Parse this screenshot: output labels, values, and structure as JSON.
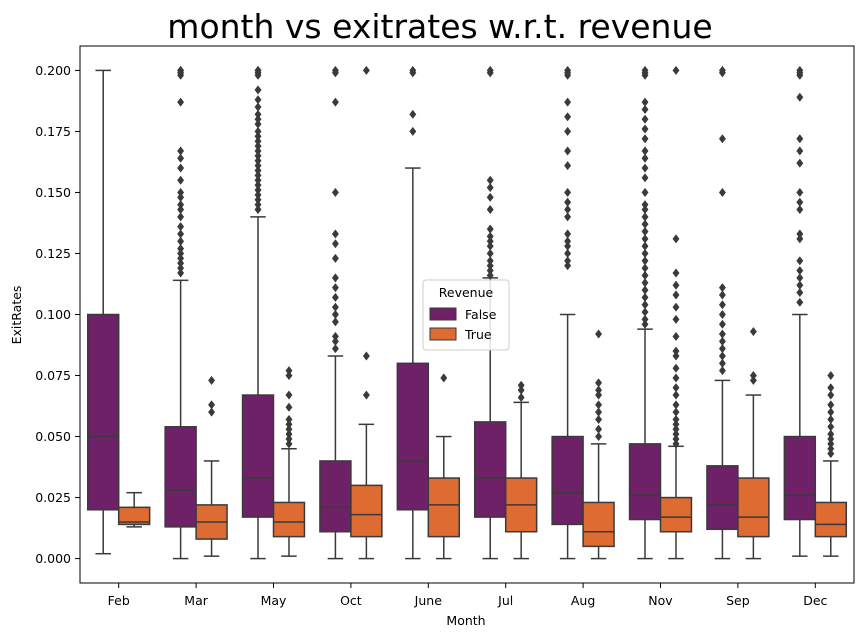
{
  "chart_data": {
    "type": "box",
    "title": "month vs exitrates w.r.t. revenue",
    "xlabel": "Month",
    "ylabel": "ExitRates",
    "categories": [
      "Feb",
      "Mar",
      "May",
      "Oct",
      "June",
      "Jul",
      "Aug",
      "Nov",
      "Sep",
      "Dec"
    ],
    "ylim": [
      -0.01,
      0.21
    ],
    "yticks": [
      "0.000",
      "0.025",
      "0.050",
      "0.075",
      "0.100",
      "0.125",
      "0.150",
      "0.175",
      "0.200"
    ],
    "legend": {
      "title": "Revenue",
      "placement": "center"
    },
    "grid": false,
    "series": [
      {
        "name": "False",
        "color": "#6e2166",
        "boxes": [
          {
            "whislo": 0.002,
            "q1": 0.02,
            "med": 0.05,
            "q3": 0.1,
            "whishi": 0.2,
            "fliers": []
          },
          {
            "whislo": 0.0,
            "q1": 0.013,
            "med": 0.028,
            "q3": 0.054,
            "whishi": 0.114,
            "fliers": [
              0.2,
              0.2,
              0.199,
              0.198,
              0.187,
              0.167,
              0.164,
              0.16,
              0.155,
              0.15,
              0.148,
              0.145,
              0.143,
              0.14,
              0.136,
              0.133,
              0.13,
              0.127,
              0.125,
              0.123,
              0.121,
              0.119,
              0.117
            ]
          },
          {
            "whislo": 0.0,
            "q1": 0.017,
            "med": 0.033,
            "q3": 0.067,
            "whishi": 0.14,
            "fliers": [
              0.2,
              0.2,
              0.199,
              0.198,
              0.192,
              0.188,
              0.185,
              0.182,
              0.18,
              0.178,
              0.175,
              0.173,
              0.171,
              0.169,
              0.167,
              0.165,
              0.163,
              0.161,
              0.159,
              0.157,
              0.155,
              0.153,
              0.151,
              0.149,
              0.147,
              0.145,
              0.143
            ]
          },
          {
            "whislo": 0.0,
            "q1": 0.011,
            "med": 0.021,
            "q3": 0.04,
            "whishi": 0.083,
            "fliers": [
              0.2,
              0.199,
              0.187,
              0.15,
              0.133,
              0.129,
              0.123,
              0.115,
              0.111,
              0.107,
              0.103,
              0.1,
              0.097,
              0.091,
              0.089,
              0.086
            ]
          },
          {
            "whislo": 0.0,
            "q1": 0.02,
            "med": 0.04,
            "q3": 0.08,
            "whishi": 0.16,
            "fliers": [
              0.2,
              0.199,
              0.182,
              0.175
            ]
          },
          {
            "whislo": 0.0,
            "q1": 0.017,
            "med": 0.033,
            "q3": 0.056,
            "whishi": 0.115,
            "fliers": [
              0.2,
              0.199,
              0.155,
              0.152,
              0.148,
              0.143,
              0.135,
              0.132,
              0.13,
              0.128,
              0.125,
              0.122,
              0.12,
              0.118,
              0.116
            ]
          },
          {
            "whislo": 0.0,
            "q1": 0.014,
            "med": 0.027,
            "q3": 0.05,
            "whishi": 0.1,
            "fliers": [
              0.2,
              0.199,
              0.198,
              0.187,
              0.181,
              0.175,
              0.167,
              0.161,
              0.15,
              0.146,
              0.143,
              0.14,
              0.133,
              0.13,
              0.128,
              0.125,
              0.122,
              0.12
            ]
          },
          {
            "whislo": 0.0,
            "q1": 0.016,
            "med": 0.026,
            "q3": 0.047,
            "whishi": 0.094,
            "fliers": [
              0.2,
              0.199,
              0.198,
              0.187,
              0.184,
              0.18,
              0.176,
              0.172,
              0.167,
              0.164,
              0.16,
              0.156,
              0.15,
              0.145,
              0.143,
              0.14,
              0.137,
              0.134,
              0.131,
              0.128,
              0.125,
              0.122,
              0.119,
              0.116,
              0.113,
              0.11,
              0.107,
              0.104,
              0.101,
              0.098,
              0.096
            ]
          },
          {
            "whislo": 0.0,
            "q1": 0.012,
            "med": 0.022,
            "q3": 0.038,
            "whishi": 0.073,
            "fliers": [
              0.2,
              0.199,
              0.172,
              0.15,
              0.111,
              0.108,
              0.104,
              0.1,
              0.096,
              0.092,
              0.089,
              0.086,
              0.083,
              0.08,
              0.077
            ]
          },
          {
            "whislo": 0.001,
            "q1": 0.016,
            "med": 0.026,
            "q3": 0.05,
            "whishi": 0.1,
            "fliers": [
              0.2,
              0.199,
              0.198,
              0.189,
              0.172,
              0.167,
              0.162,
              0.15,
              0.146,
              0.143,
              0.133,
              0.131,
              0.122,
              0.118,
              0.115,
              0.112,
              0.109,
              0.105
            ]
          }
        ]
      },
      {
        "name": "True",
        "color": "#dd6b32",
        "boxes": [
          {
            "whislo": 0.013,
            "q1": 0.014,
            "med": 0.015,
            "q3": 0.021,
            "whishi": 0.027,
            "fliers": []
          },
          {
            "whislo": 0.001,
            "q1": 0.008,
            "med": 0.015,
            "q3": 0.022,
            "whishi": 0.04,
            "fliers": [
              0.073,
              0.063,
              0.06
            ]
          },
          {
            "whislo": 0.001,
            "q1": 0.009,
            "med": 0.015,
            "q3": 0.023,
            "whishi": 0.045,
            "fliers": [
              0.077,
              0.075,
              0.067,
              0.062,
              0.057,
              0.055,
              0.053,
              0.051,
              0.049,
              0.047
            ]
          },
          {
            "whislo": 0.0,
            "q1": 0.009,
            "med": 0.018,
            "q3": 0.03,
            "whishi": 0.055,
            "fliers": [
              0.2,
              0.083,
              0.067
            ]
          },
          {
            "whislo": 0.0,
            "q1": 0.009,
            "med": 0.022,
            "q3": 0.033,
            "whishi": 0.05,
            "fliers": [
              0.074
            ]
          },
          {
            "whislo": 0.0,
            "q1": 0.011,
            "med": 0.022,
            "q3": 0.033,
            "whishi": 0.064,
            "fliers": [
              0.071,
              0.069,
              0.066
            ]
          },
          {
            "whislo": 0.0,
            "q1": 0.005,
            "med": 0.011,
            "q3": 0.023,
            "whishi": 0.047,
            "fliers": [
              0.092,
              0.072,
              0.069,
              0.067,
              0.063,
              0.06,
              0.057,
              0.053,
              0.05
            ]
          },
          {
            "whislo": 0.0,
            "q1": 0.011,
            "med": 0.017,
            "q3": 0.025,
            "whishi": 0.046,
            "fliers": [
              0.2,
              0.131,
              0.117,
              0.112,
              0.108,
              0.103,
              0.098,
              0.091,
              0.085,
              0.083,
              0.078,
              0.074,
              0.07,
              0.067,
              0.063,
              0.06,
              0.057,
              0.055,
              0.053,
              0.051,
              0.049,
              0.047
            ]
          },
          {
            "whislo": 0.0,
            "q1": 0.009,
            "med": 0.017,
            "q3": 0.033,
            "whishi": 0.067,
            "fliers": [
              0.093,
              0.075,
              0.073
            ]
          },
          {
            "whislo": 0.001,
            "q1": 0.009,
            "med": 0.014,
            "q3": 0.023,
            "whishi": 0.04,
            "fliers": [
              0.075,
              0.07,
              0.067,
              0.063,
              0.06,
              0.057,
              0.054,
              0.051,
              0.049,
              0.047,
              0.045,
              0.043
            ]
          }
        ]
      }
    ]
  }
}
